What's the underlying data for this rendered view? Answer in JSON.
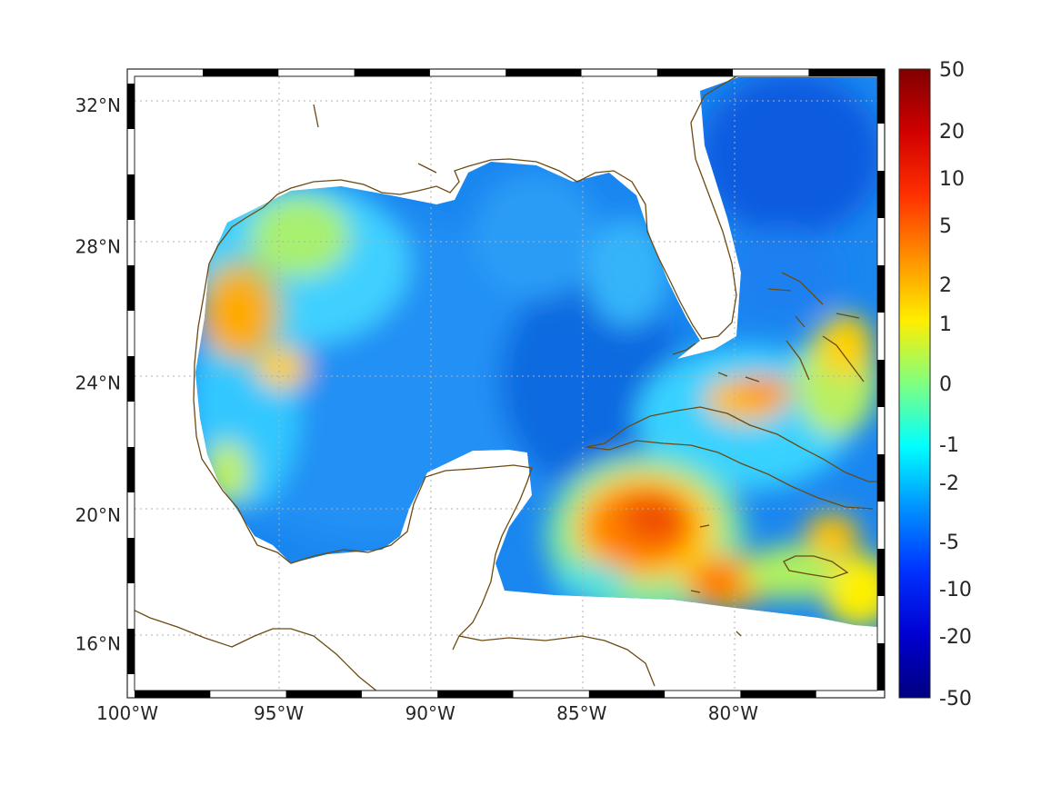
{
  "map": {
    "x_ticks": [
      {
        "lon": -100,
        "label": "100°W"
      },
      {
        "lon": -95,
        "label": "95°W"
      },
      {
        "lon": -90,
        "label": "90°W"
      },
      {
        "lon": -85,
        "label": "85°W"
      },
      {
        "lon": -80,
        "label": "80°W"
      }
    ],
    "y_ticks": [
      {
        "lat": 32,
        "label": "32°N"
      },
      {
        "lat": 28,
        "label": "28°N"
      },
      {
        "lat": 24,
        "label": "24°N"
      },
      {
        "lat": 20,
        "label": "20°N"
      },
      {
        "lat": 16,
        "label": "16°N"
      }
    ],
    "lon_range": [
      -100,
      -75
    ],
    "lat_range": [
      14.3,
      33
    ],
    "grid": true,
    "coastline_color": "#6b4a12"
  },
  "colorbar": {
    "labels": [
      "50",
      "20",
      "10",
      "5",
      "2",
      "1",
      "0",
      "-1",
      "-2",
      "-5",
      "-10",
      "-20",
      "-50"
    ],
    "colors_top_to_bottom": [
      "#800000",
      "#ff0000",
      "#ff8000",
      "#ffff00",
      "#80ff80",
      "#00ffff",
      "#0080ff",
      "#0000ff",
      "#000080"
    ]
  }
}
